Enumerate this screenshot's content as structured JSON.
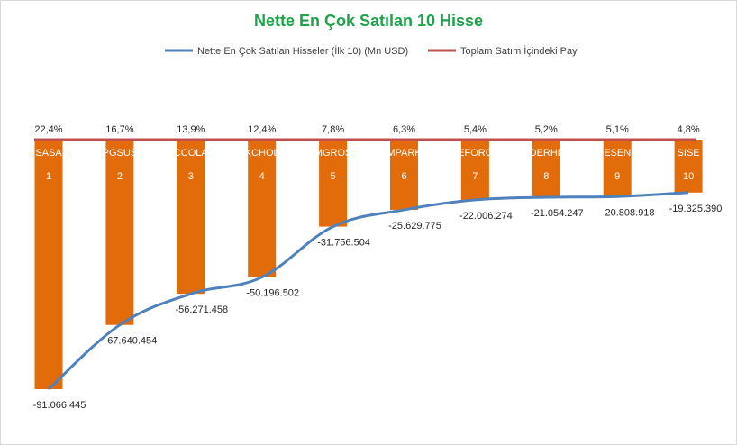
{
  "chart_data": {
    "type": "bar",
    "title": "Nette En Çok Satılan 10 Hisse",
    "xlabel": "",
    "ylabel": "",
    "grid": false,
    "legend_position": "top",
    "categories": [
      "SASA",
      "PGSUS",
      "CCOLA",
      "KCHOL",
      "MGROS",
      "MPARK",
      "EFORC",
      "DERHL",
      "ESEN",
      "SISE"
    ],
    "ranks": [
      "1",
      "2",
      "3",
      "4",
      "5",
      "6",
      "7",
      "8",
      "9",
      "10"
    ],
    "series": [
      {
        "name": "Nette En Çok Satılan Hisseler (İlk 10) (Mn USD)",
        "type": "bar+line",
        "color": "#e36c0a",
        "line_color": "#4f81bd",
        "values": [
          -91066445,
          -67640454,
          -56271458,
          -50196502,
          -31756504,
          -25629775,
          -22006274,
          -21054247,
          -20808918,
          -19325390
        ],
        "labels": [
          "-91.066.445",
          "-67.640.454",
          "-56.271.458",
          "-50.196.502",
          "-31.756.504",
          "-25.629.775",
          "-22.006.274",
          "-21.054.247",
          "-20.808.918",
          "-19.325.390"
        ]
      },
      {
        "name": "Toplam Satım İçindeki Pay",
        "type": "line",
        "color": "#c0504d",
        "values": [
          22.4,
          16.7,
          13.9,
          12.4,
          7.8,
          6.3,
          5.4,
          5.2,
          5.1,
          4.8
        ],
        "labels": [
          "22,4%",
          "16,7%",
          "13,9%",
          "12,4%",
          "7,8%",
          "6,3%",
          "5,4%",
          "5,2%",
          "5,1%",
          "4,8%"
        ]
      }
    ],
    "ylim": [
      -91066445,
      0
    ]
  }
}
